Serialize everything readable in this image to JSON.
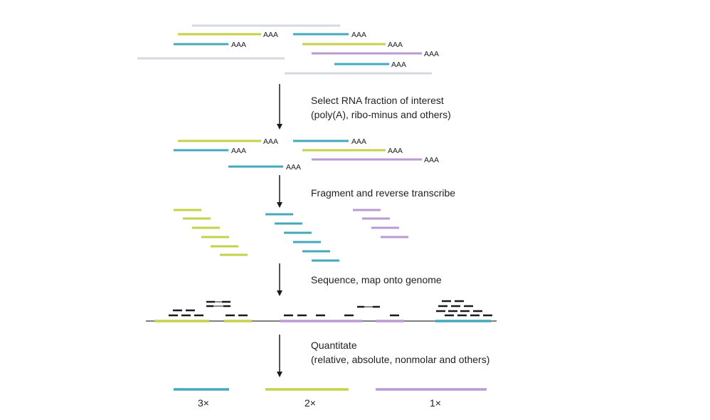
{
  "colors": {
    "green": "#c5d146",
    "teal": "#44a9bd",
    "purple": "#bb9ad3",
    "gray": "#d5d9e1",
    "arrow": "#1a1a1a",
    "read": "#1a1a1a",
    "genome": "#555555"
  },
  "poly_a_label": "AAA",
  "steps": [
    {
      "line1": "Select RNA fraction of interest",
      "line2": "(poly(A), ribo-minus and others)"
    },
    {
      "line1": "Fragment and reverse transcribe",
      "line2": ""
    },
    {
      "line1": "Sequence, map onto genome",
      "line2": ""
    },
    {
      "line1": "Quantitate",
      "line2": "(relative, absolute, nonmolar and others)"
    }
  ],
  "quantities": [
    {
      "color": "teal",
      "label": "3×"
    },
    {
      "color": "green",
      "label": "2×"
    },
    {
      "color": "purple",
      "label": "1×"
    }
  ]
}
